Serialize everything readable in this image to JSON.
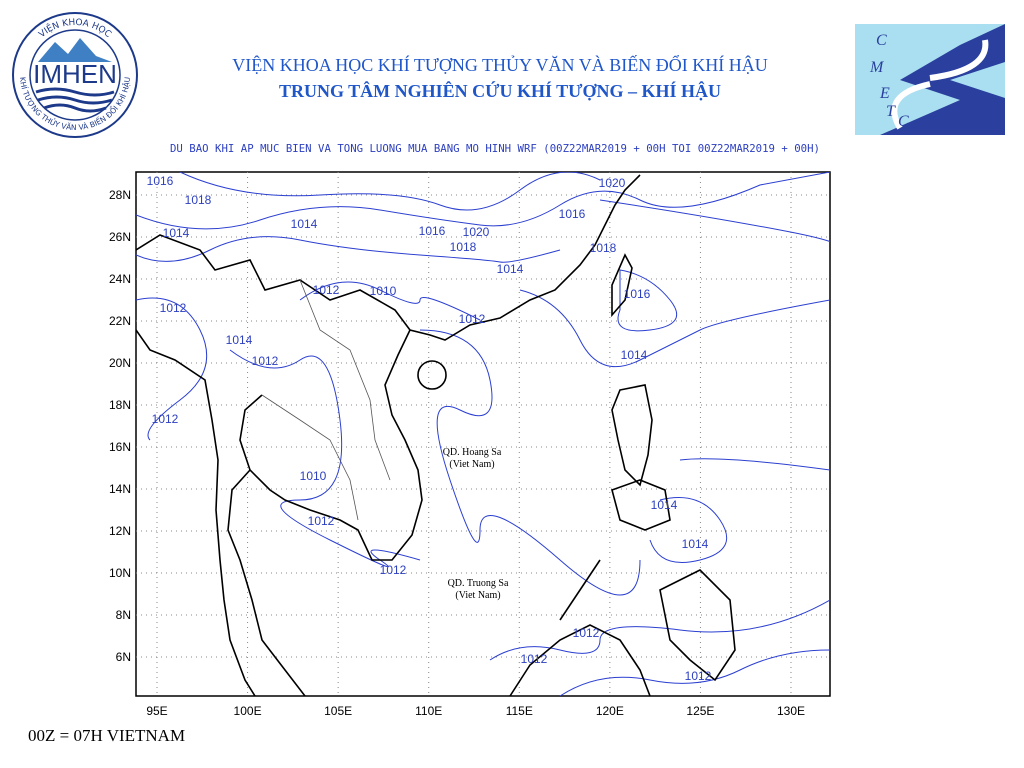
{
  "header": {
    "institute": "VIỆN KHOA HỌC KHÍ TƯỢNG THỦY VĂN VÀ BIẾN ĐỔI KHÍ HẬU",
    "center": "TRUNG TÂM NGHIÊN CỨU KHÍ TƯỢNG – KHÍ HẬU",
    "left_logo": {
      "name": "IMHEN",
      "ring_top": "VIỆN KHOA HỌC",
      "ring_bottom": "KHÍ TƯỢNG THỦY VĂN VÀ BIẾN ĐỔI KHÍ HẬU"
    },
    "right_logo": {
      "letters": [
        "C",
        "M",
        "E",
        "T",
        "C"
      ]
    }
  },
  "map": {
    "title": "DU BAO KHI AP MUC BIEN VA TONG LUONG MUA BANG MO HINH WRF (00Z22MAR2019 + 00H TOI 00Z22MAR2019 + 00H)",
    "lon_ticks": [
      {
        "value": 95,
        "label": "95E"
      },
      {
        "value": 100,
        "label": "100E"
      },
      {
        "value": 105,
        "label": "105E"
      },
      {
        "value": 110,
        "label": "110E"
      },
      {
        "value": 115,
        "label": "115E"
      },
      {
        "value": 120,
        "label": "120E"
      },
      {
        "value": 125,
        "label": "125E"
      },
      {
        "value": 130,
        "label": "130E"
      }
    ],
    "lat_ticks": [
      {
        "value": 6,
        "label": "6N"
      },
      {
        "value": 8,
        "label": "8N"
      },
      {
        "value": 10,
        "label": "10N"
      },
      {
        "value": 12,
        "label": "12N"
      },
      {
        "value": 14,
        "label": "14N"
      },
      {
        "value": 16,
        "label": "16N"
      },
      {
        "value": 18,
        "label": "18N"
      },
      {
        "value": 20,
        "label": "20N"
      },
      {
        "value": 22,
        "label": "22N"
      },
      {
        "value": 24,
        "label": "24N"
      },
      {
        "value": 26,
        "label": "26N"
      },
      {
        "value": 28,
        "label": "28N"
      }
    ],
    "contour_labels": [
      1016,
      1018,
      1014,
      1014,
      1016,
      1020,
      1018,
      1016,
      1020,
      1018,
      1014,
      1016,
      1012,
      1010,
      1012,
      1012,
      1014,
      1012,
      1014,
      1012,
      1010,
      1012,
      1012,
      1014,
      1014,
      1012,
      1012,
      1012
    ],
    "places": [
      {
        "name": "QD. Hoang Sa",
        "note": "(Viet Nam)"
      },
      {
        "name": "QD. Truong Sa",
        "note": "(Viet Nam)"
      }
    ]
  },
  "footer": "00Z = 07H VIETNAM"
}
